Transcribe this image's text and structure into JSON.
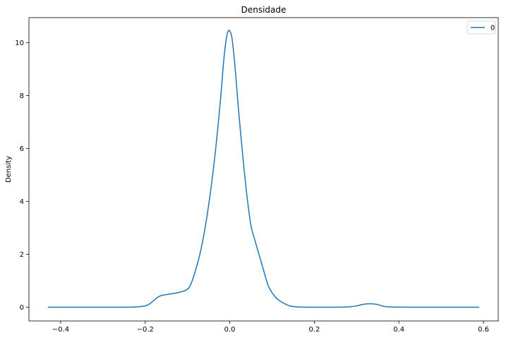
{
  "chart_data": {
    "type": "line",
    "title": "Densidade",
    "xlabel": "",
    "ylabel": "Density",
    "xlim": [
      -0.475,
      0.635
    ],
    "ylim": [
      -0.52,
      10.95
    ],
    "xticks": [
      -0.4,
      -0.2,
      0.0,
      0.2,
      0.4,
      0.6
    ],
    "xtick_labels": [
      "−0.4",
      "−0.2",
      "0.0",
      "0.2",
      "0.4",
      "0.6"
    ],
    "yticks": [
      0,
      2,
      4,
      6,
      8,
      10
    ],
    "ytick_labels": [
      "0",
      "2",
      "4",
      "6",
      "8",
      "10"
    ],
    "grid": false,
    "legend": "top-right",
    "series": [
      {
        "name": "0",
        "color": "#1f77b4",
        "x": [
          -0.43,
          -0.3,
          -0.25,
          -0.22,
          -0.2,
          -0.19,
          -0.18,
          -0.17,
          -0.16,
          -0.14,
          -0.12,
          -0.1,
          -0.09,
          -0.08,
          -0.07,
          -0.06,
          -0.05,
          -0.04,
          -0.03,
          -0.02,
          -0.015,
          -0.01,
          -0.005,
          0.0,
          0.005,
          0.01,
          0.015,
          0.02,
          0.03,
          0.04,
          0.05,
          0.06,
          0.07,
          0.08,
          0.09,
          0.1,
          0.11,
          0.12,
          0.14,
          0.16,
          0.2,
          0.25,
          0.28,
          0.3,
          0.31,
          0.32,
          0.335,
          0.35,
          0.36,
          0.38,
          0.45,
          0.55,
          0.59
        ],
        "y": [
          0.0,
          0.0,
          0.0,
          0.01,
          0.05,
          0.12,
          0.25,
          0.38,
          0.45,
          0.5,
          0.56,
          0.68,
          0.95,
          1.45,
          2.05,
          2.85,
          3.85,
          5.05,
          6.5,
          8.2,
          9.2,
          9.95,
          10.4,
          10.45,
          10.2,
          9.5,
          8.6,
          7.6,
          5.85,
          4.3,
          3.1,
          2.5,
          1.95,
          1.4,
          0.85,
          0.55,
          0.35,
          0.22,
          0.06,
          0.01,
          0.0,
          0.0,
          0.01,
          0.05,
          0.09,
          0.12,
          0.13,
          0.1,
          0.05,
          0.01,
          0.0,
          0.0,
          0.0
        ]
      }
    ]
  }
}
